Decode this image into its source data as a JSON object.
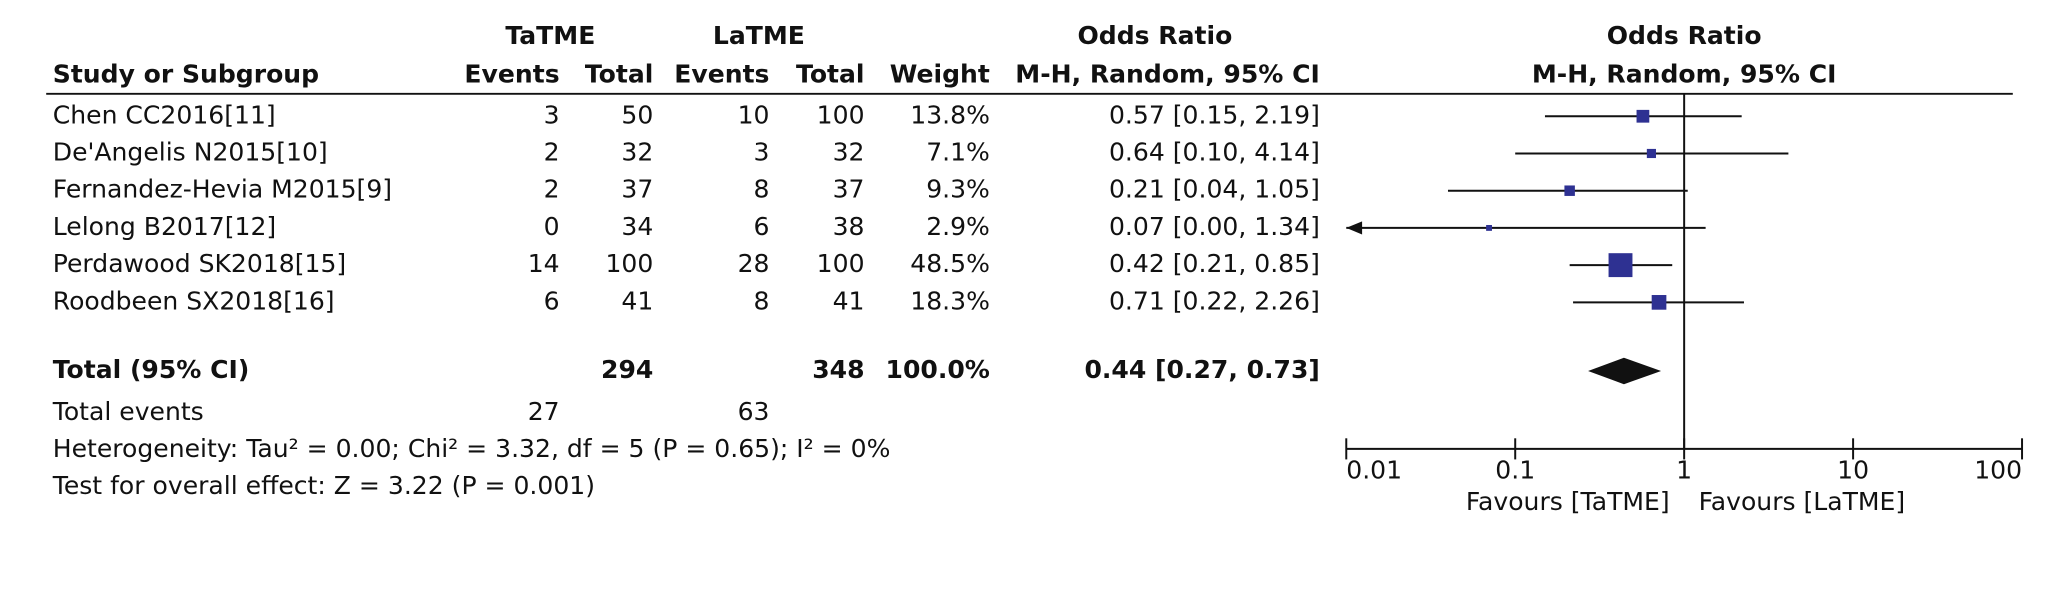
{
  "chart_data": {
    "type": "forest",
    "headers": {
      "group1": "TaTME",
      "group2": "LaTME",
      "or_title": "Odds Ratio",
      "study": "Study or Subgroup",
      "events1": "Events",
      "total1": "Total",
      "events2": "Events",
      "total2": "Total",
      "weight": "Weight",
      "or_method": "M-H, Random, 95% CI",
      "plot_title": "Odds Ratio",
      "plot_method": "M-H, Random, 95% CI"
    },
    "studies": [
      {
        "name": "Chen CC2016[11]",
        "events1": 3,
        "total1": 50,
        "events2": 10,
        "total2": 100,
        "weight": 13.8,
        "weight_label": "13.8%",
        "or": 0.57,
        "lower": 0.15,
        "upper": 2.19,
        "ci_label": "0.57 [0.15, 2.19]"
      },
      {
        "name": "De'Angelis N2015[10]",
        "events1": 2,
        "total1": 32,
        "events2": 3,
        "total2": 32,
        "weight": 7.1,
        "weight_label": "7.1%",
        "or": 0.64,
        "lower": 0.1,
        "upper": 4.14,
        "ci_label": "0.64 [0.10, 4.14]"
      },
      {
        "name": "Fernandez-Hevia M2015[9]",
        "events1": 2,
        "total1": 37,
        "events2": 8,
        "total2": 37,
        "weight": 9.3,
        "weight_label": "9.3%",
        "or": 0.21,
        "lower": 0.04,
        "upper": 1.05,
        "ci_label": "0.21 [0.04, 1.05]"
      },
      {
        "name": "Lelong B2017[12]",
        "events1": 0,
        "total1": 34,
        "events2": 6,
        "total2": 38,
        "weight": 2.9,
        "weight_label": "2.9%",
        "or": 0.07,
        "lower": 0.0,
        "upper": 1.34,
        "ci_label": "0.07 [0.00, 1.34]"
      },
      {
        "name": "Perdawood SK2018[15]",
        "events1": 14,
        "total1": 100,
        "events2": 28,
        "total2": 100,
        "weight": 48.5,
        "weight_label": "48.5%",
        "or": 0.42,
        "lower": 0.21,
        "upper": 0.85,
        "ci_label": "0.42 [0.21, 0.85]"
      },
      {
        "name": "Roodbeen SX2018[16]",
        "events1": 6,
        "total1": 41,
        "events2": 8,
        "total2": 41,
        "weight": 18.3,
        "weight_label": "18.3%",
        "or": 0.71,
        "lower": 0.22,
        "upper": 2.26,
        "ci_label": "0.71 [0.22, 2.26]"
      }
    ],
    "total": {
      "name": "Total (95% CI)",
      "total1": 294,
      "total2": 348,
      "weight_label": "100.0%",
      "or": 0.44,
      "lower": 0.27,
      "upper": 0.73,
      "ci_label": "0.44 [0.27, 0.73]"
    },
    "total_events": {
      "name": "Total events",
      "events1": 27,
      "events2": 63
    },
    "heterogeneity": "Heterogeneity: Tau² = 0.00; Chi² = 3.32, df = 5 (P = 0.65); I² = 0%",
    "overall_effect": "Test for overall effect: Z = 3.22 (P = 0.001)",
    "xlim": [
      0.01,
      100
    ],
    "xticks": [
      0.01,
      0.1,
      1,
      10,
      100
    ],
    "xscale": "log",
    "favours_left": "Favours [TaTME]",
    "favours_right": "Favours [LaTME]",
    "color": "#2e3192"
  }
}
